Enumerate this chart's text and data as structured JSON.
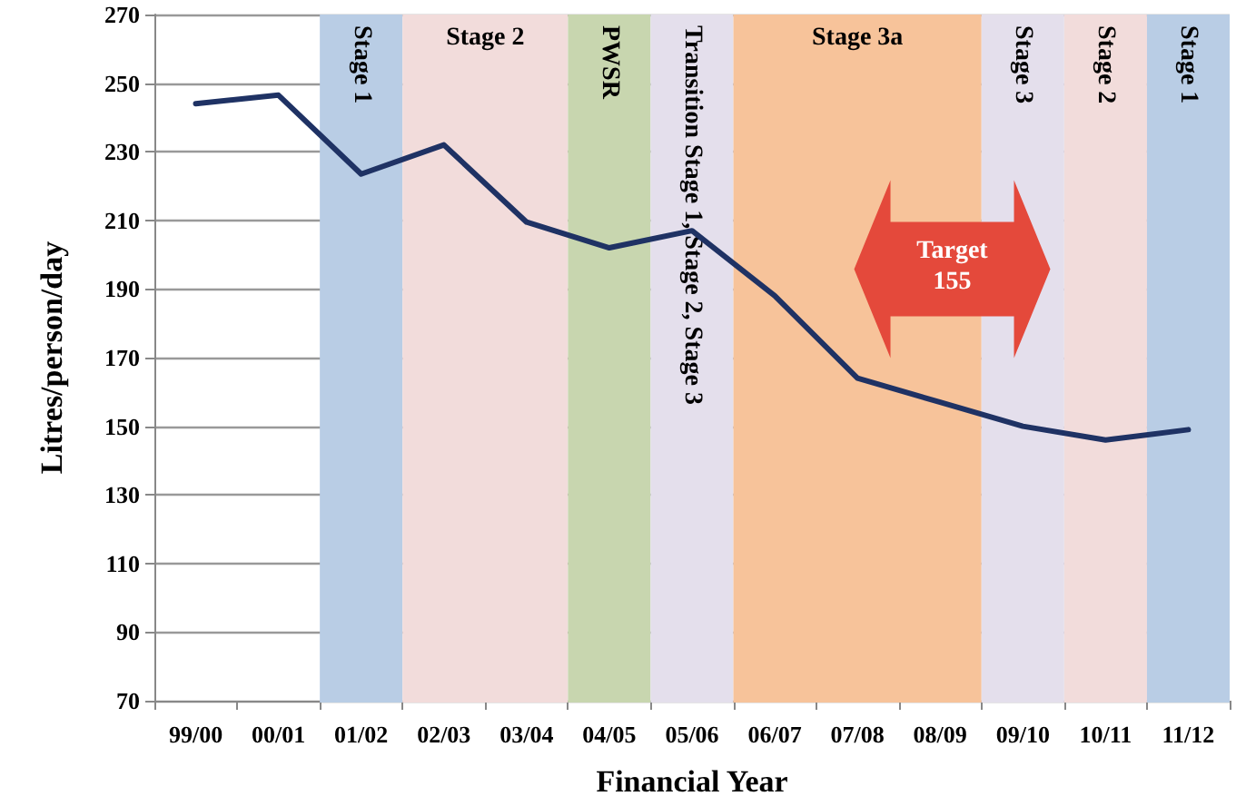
{
  "chart_data": {
    "type": "line",
    "xlabel": "Financial Year",
    "ylabel": "Litres/person/day",
    "categories": [
      "99/00",
      "00/01",
      "01/02",
      "02/03",
      "03/04",
      "04/05",
      "05/06",
      "06/07",
      "07/08",
      "08/09",
      "09/10",
      "10/11",
      "11/12"
    ],
    "series": [
      {
        "color": "#1f3264",
        "values": [
          244,
          246.5,
          223.5,
          232,
          209.5,
          202,
          207,
          188,
          164,
          157,
          150,
          146,
          149
        ]
      }
    ],
    "ylim": [
      70,
      270
    ],
    "yticks": [
      70,
      90,
      110,
      130,
      150,
      170,
      190,
      210,
      230,
      250,
      270
    ],
    "bands": [
      {
        "axis": "x",
        "from": "01/02",
        "to": "01/02",
        "label": "Stage 1",
        "color": "#b9cde5"
      },
      {
        "axis": "x",
        "from": "02/03",
        "to": "03/04",
        "label": "Stage 2",
        "color": "#f2dcdb"
      },
      {
        "axis": "x",
        "from": "04/05",
        "to": "04/05",
        "label": "PWSR",
        "color": "#c8d6af"
      },
      {
        "axis": "x",
        "from": "05/06",
        "to": "05/06",
        "label": "Transition Stage 1, Stage 2, Stage 3",
        "color": "#e4dfec"
      },
      {
        "axis": "x",
        "from": "06/07",
        "to": "08/09",
        "label": "Stage 3a",
        "color": "#f7c39a"
      },
      {
        "axis": "x",
        "from": "09/10",
        "to": "09/10",
        "label": "Stage 3",
        "color": "#e4dfec"
      },
      {
        "axis": "x",
        "from": "10/11",
        "to": "10/11",
        "label": "Stage 2",
        "color": "#f2dcdb"
      },
      {
        "axis": "x",
        "from": "11/12",
        "to": "11/12",
        "label": "Stage 1",
        "color": "#b9cde5"
      }
    ],
    "annotations": [
      "Target 155"
    ],
    "grid": "y",
    "marker": "none",
    "line_style": "solid"
  }
}
